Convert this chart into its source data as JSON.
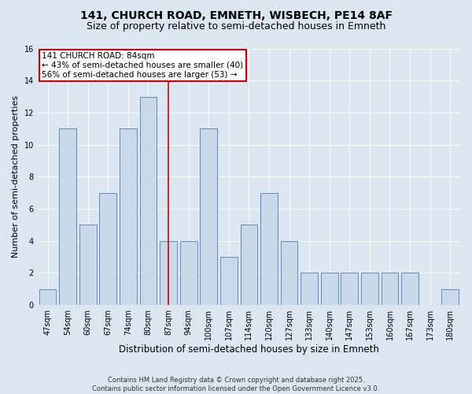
{
  "title1": "141, CHURCH ROAD, EMNETH, WISBECH, PE14 8AF",
  "title2": "Size of property relative to semi-detached houses in Emneth",
  "xlabel": "Distribution of semi-detached houses by size in Emneth",
  "ylabel": "Number of semi-detached properties",
  "categories": [
    "47sqm",
    "54sqm",
    "60sqm",
    "67sqm",
    "74sqm",
    "80sqm",
    "87sqm",
    "94sqm",
    "100sqm",
    "107sqm",
    "114sqm",
    "120sqm",
    "127sqm",
    "133sqm",
    "140sqm",
    "147sqm",
    "153sqm",
    "160sqm",
    "167sqm",
    "173sqm",
    "180sqm"
  ],
  "values": [
    1,
    11,
    5,
    7,
    11,
    13,
    4,
    4,
    11,
    3,
    5,
    7,
    4,
    2,
    2,
    2,
    2,
    2,
    2,
    0,
    1
  ],
  "bar_color": "#c9d9ea",
  "bar_edge_color": "#5b8cc8",
  "highlight_index": 6,
  "highlight_line_color": "#cc0000",
  "annotation_text": "141 CHURCH ROAD: 84sqm\n← 43% of semi-detached houses are smaller (40)\n56% of semi-detached houses are larger (53) →",
  "annotation_box_color": "#ffffff",
  "annotation_box_edge": "#cc0000",
  "ylim": [
    0,
    16
  ],
  "yticks": [
    0,
    2,
    4,
    6,
    8,
    10,
    12,
    14,
    16
  ],
  "footer1": "Contains HM Land Registry data © Crown copyright and database right 2025.",
  "footer2": "Contains public sector information licensed under the Open Government Licence v3.0.",
  "bg_color": "#dce6f0",
  "title_fontsize": 10,
  "subtitle_fontsize": 9,
  "tick_fontsize": 7,
  "ylabel_fontsize": 8,
  "xlabel_fontsize": 8.5,
  "annotation_fontsize": 7.5,
  "footer_fontsize": 6
}
